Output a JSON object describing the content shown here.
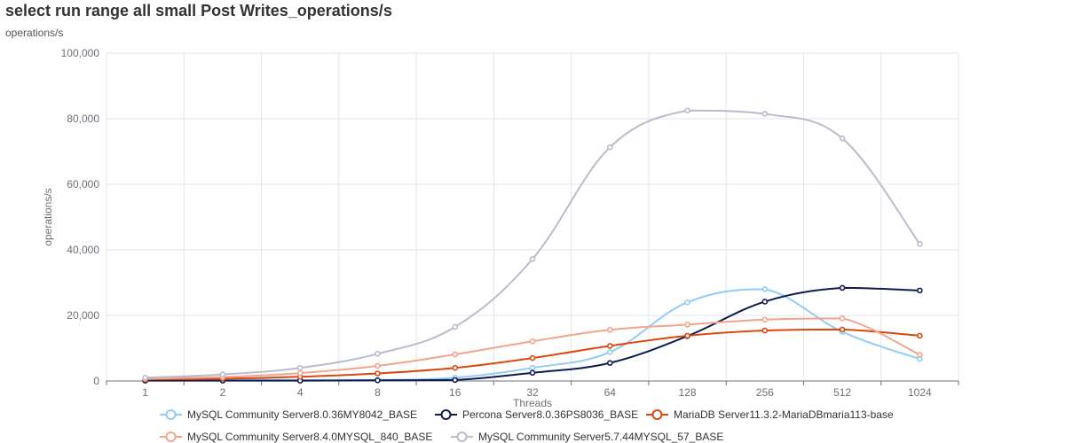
{
  "page": {
    "title": "select run range all small Post Writes_operations/s",
    "subtitle": "operations/s"
  },
  "chart_data": {
    "type": "line",
    "title": "select run range all small Post Writes_operations/s",
    "subtitle": "operations/s",
    "xlabel": "Threads",
    "ylabel": "operations/s",
    "categories": [
      "1",
      "2",
      "4",
      "8",
      "16",
      "32",
      "64",
      "128",
      "256",
      "512",
      "1024"
    ],
    "ylim": [
      0,
      100000
    ],
    "yticks": [
      0,
      20000,
      40000,
      60000,
      80000,
      100000
    ],
    "ytick_labels": [
      "0",
      "20,000",
      "40,000",
      "60,000",
      "80,000",
      "100,000"
    ],
    "grid": true,
    "legend_position": "bottom",
    "series": [
      {
        "name": "MySQL Community Server8.0.36MY8042_BASE",
        "color": "#91cbf7",
        "values": [
          300,
          400,
          300,
          300,
          1000,
          4000,
          8800,
          24000,
          28000,
          15000,
          6700
        ]
      },
      {
        "name": "Percona Server8.0.36PS8036_BASE",
        "color": "#0f1a50",
        "values": [
          100,
          100,
          100,
          200,
          300,
          2500,
          5500,
          13700,
          24200,
          28400,
          27600
        ]
      },
      {
        "name": "MariaDB Server11.3.2-MariaDBmaria113-base",
        "color": "#d9480f",
        "values": [
          500,
          700,
          1300,
          2300,
          4000,
          7000,
          10700,
          13800,
          15400,
          15700,
          13800
        ]
      },
      {
        "name": "MySQL Community Server8.4.0MYSQL_840_BASE",
        "color": "#f2a58c",
        "values": [
          700,
          1200,
          2400,
          4600,
          8100,
          12100,
          15600,
          17200,
          18700,
          19100,
          8000
        ]
      },
      {
        "name": "MySQL Community Server5.7.44MYSQL_57_BASE",
        "color": "#b9bccc",
        "values": [
          1000,
          2000,
          4000,
          8300,
          16500,
          37200,
          71300,
          82500,
          81500,
          74000,
          41800
        ]
      }
    ]
  }
}
